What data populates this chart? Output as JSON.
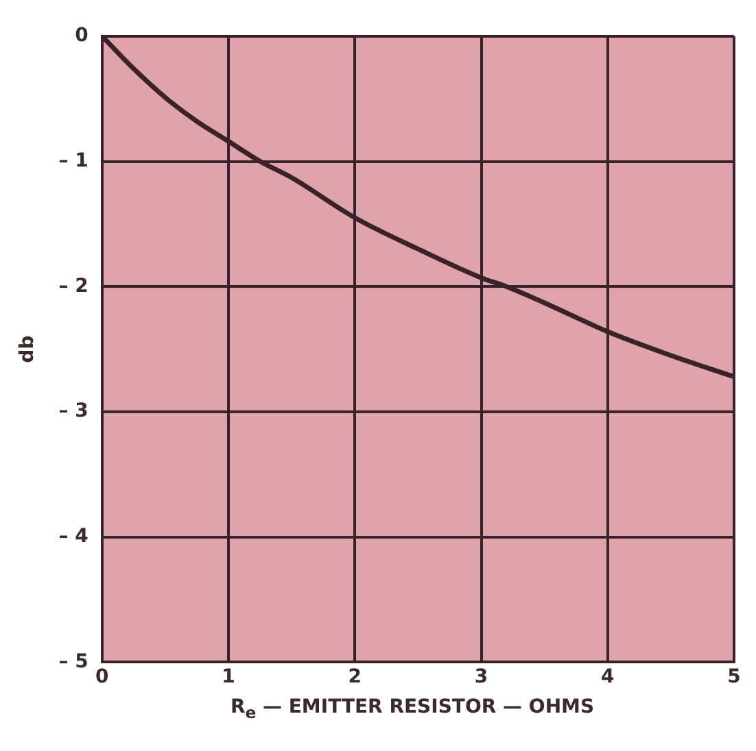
{
  "chart_data": {
    "type": "line",
    "xlabel": "R$_{e}$ — EMITTER RESISTOR — OHMS",
    "ylabel": "db",
    "x": [
      0,
      0.25,
      0.5,
      0.75,
      1,
      1.25,
      1.5,
      2,
      2.5,
      3,
      3.2,
      3.5,
      4,
      4.5,
      5
    ],
    "series": [
      {
        "color": "#3a2228",
        "values": [
          0,
          -0.26,
          -0.49,
          -0.68,
          -0.84,
          -1.0,
          -1.13,
          -1.45,
          -1.7,
          -1.93,
          -2.0,
          -2.13,
          -2.36,
          -2.55,
          -2.72
        ]
      }
    ],
    "xlim": [
      0,
      5
    ],
    "xticks": [
      0,
      1,
      2,
      3,
      4,
      5
    ],
    "ylim": [
      -5,
      0
    ],
    "yticks": [
      {
        "value": -5,
        "label": "– 5"
      },
      {
        "value": -4,
        "label": "– 4"
      },
      {
        "value": -3,
        "label": "– 3"
      },
      {
        "value": -2,
        "label": "– 2"
      },
      {
        "value": -1,
        "label": "– 1"
      },
      0
    ],
    "grid": true,
    "legend": false,
    "marker": "none",
    "line_style": "solid"
  }
}
